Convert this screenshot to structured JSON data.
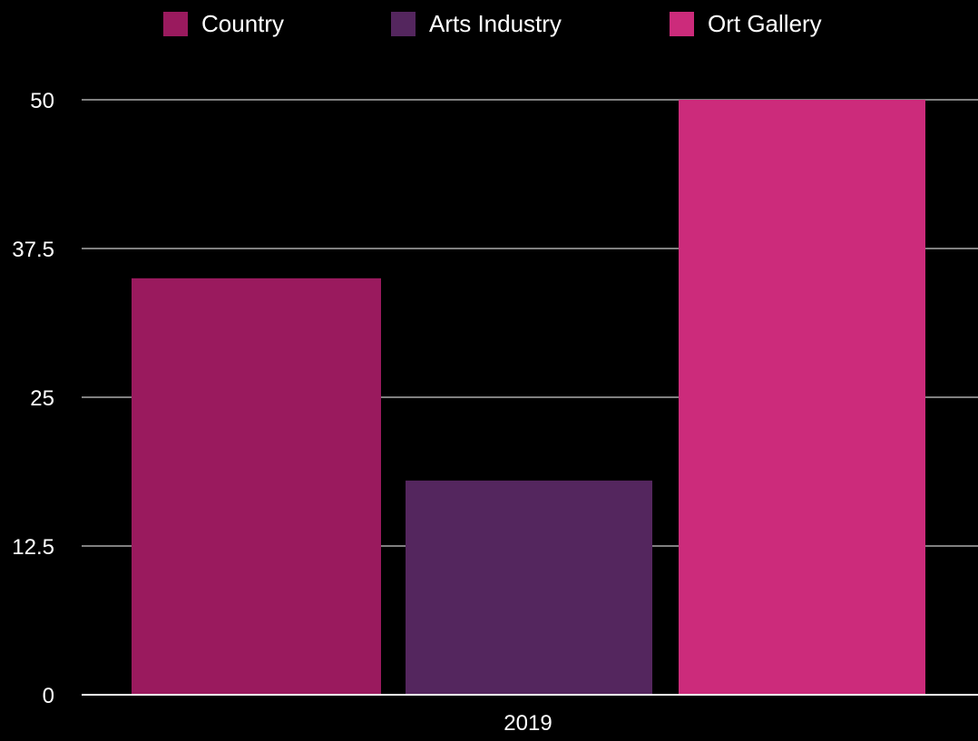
{
  "chart_data": {
    "type": "bar",
    "categories": [
      "2019"
    ],
    "series": [
      {
        "name": "Country",
        "values": [
          35
        ],
        "color": "#9a1a5e"
      },
      {
        "name": "Arts Industry",
        "values": [
          18
        ],
        "color": "#54265e"
      },
      {
        "name": "Ort Gallery",
        "values": [
          50
        ],
        "color": "#cc2b7b"
      }
    ],
    "ylim": [
      0,
      50
    ],
    "yticks": [
      0,
      12.5,
      25,
      37.5,
      50
    ],
    "ytick_labels": [
      "0",
      "12.5",
      "25",
      "37.5",
      "50"
    ],
    "grid": true,
    "legend_position": "top",
    "background": "#000000",
    "gridline_color": "#ffffff",
    "text_color": "#ffffff"
  }
}
